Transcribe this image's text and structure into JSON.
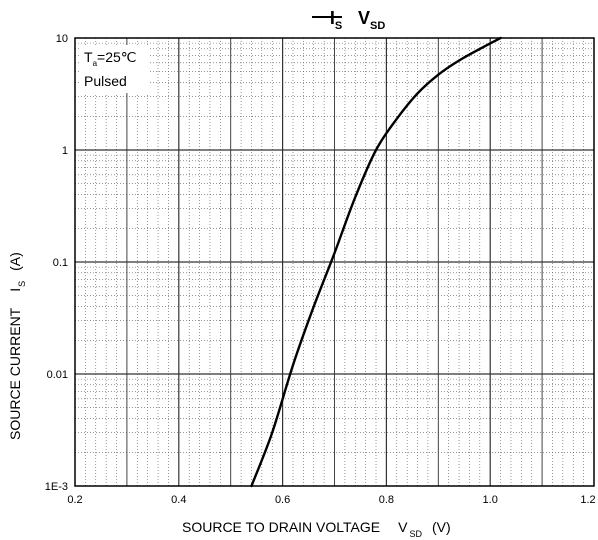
{
  "chart_data": {
    "type": "line",
    "title": {
      "left_symbol": "I",
      "left_subscript": "S",
      "right_symbol": "V",
      "right_subscript": "SD"
    },
    "xlabel": {
      "text": "SOURCE TO DRAIN VOLTAGE",
      "symbol": "V",
      "subscript": "SD",
      "unit": "(V)"
    },
    "ylabel": {
      "text": "SOURCE CURRENT",
      "symbol": "I",
      "subscript": "S",
      "unit": "(A)"
    },
    "annotations": {
      "temp_symbol": "T",
      "temp_subscript": "a",
      "temp_value": "=25℃",
      "mode": "Pulsed"
    },
    "x_ticks": [
      "0.2",
      "0.4",
      "0.6",
      "0.8",
      "1.0",
      "1.2"
    ],
    "y_ticks": [
      "1E-3",
      "0.01",
      "0.1",
      "1",
      "10"
    ],
    "xlim": [
      0.2,
      1.2
    ],
    "ylim": [
      0.001,
      10
    ],
    "y_scale": "log",
    "grid": true,
    "series": [
      {
        "x": [
          0.54,
          0.58,
          0.62,
          0.66,
          0.7,
          0.74,
          0.78,
          0.82,
          0.86,
          0.9,
          0.94,
          0.98,
          1.02
        ],
        "y": [
          0.001,
          0.003,
          0.012,
          0.04,
          0.12,
          0.38,
          1.0,
          1.9,
          3.2,
          4.7,
          6.3,
          8.0,
          10.0
        ]
      }
    ],
    "colors": {
      "line": "#000000",
      "grid_major": "#333333",
      "grid_minor": "#555555"
    }
  }
}
